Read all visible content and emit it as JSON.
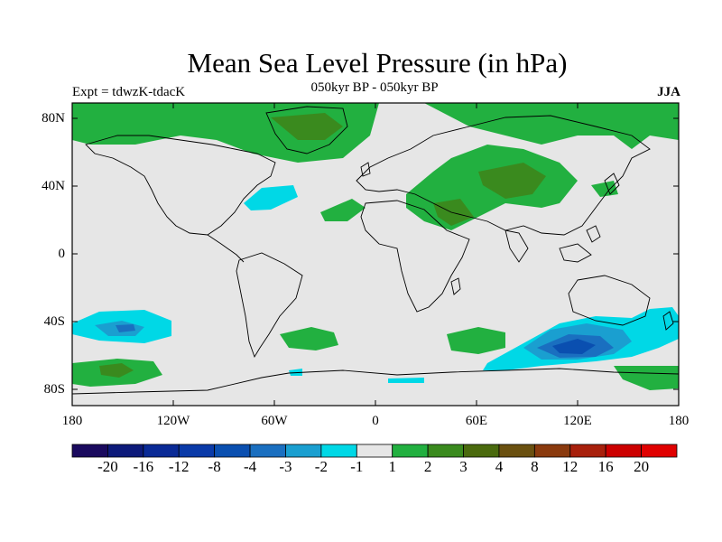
{
  "title": "Mean Sea Level Pressure (in hPa)",
  "subtitle": "050kyr BP - 050kyr BP",
  "experiment": "Expt = tdwzK-tdacK",
  "season": "JJA",
  "lat_labels": [
    "80N",
    "40N",
    "0",
    "40S",
    "80S"
  ],
  "lon_labels": [
    "180",
    "120W",
    "60W",
    "0",
    "60E",
    "120E",
    "180"
  ],
  "colorbar": {
    "labels": [
      "-20",
      "-16",
      "-12",
      "-8",
      "-4",
      "-3",
      "-2",
      "-1",
      "1",
      "2",
      "3",
      "4",
      "8",
      "12",
      "16",
      "20"
    ],
    "colors": [
      "#1a0a5e",
      "#0d1a7a",
      "#0a2a96",
      "#0a3aa8",
      "#0a4fb0",
      "#1a6fc0",
      "#1a9fd0",
      "#00d8e6",
      "#e6e6e6",
      "#22b040",
      "#3a8a1e",
      "#4a6a0e",
      "#6a5010",
      "#8a3a0e",
      "#a8200c",
      "#cc0000",
      "#e00000"
    ]
  },
  "colors": {
    "background": "#e6e6e6",
    "positive_low": "#22b040",
    "positive_mid": "#3a8a1e",
    "positive_high": "#5a6a18",
    "negative_low": "#00d8e6",
    "negative_mid": "#1a9fd0",
    "negative_high": "#0a4fb0"
  }
}
